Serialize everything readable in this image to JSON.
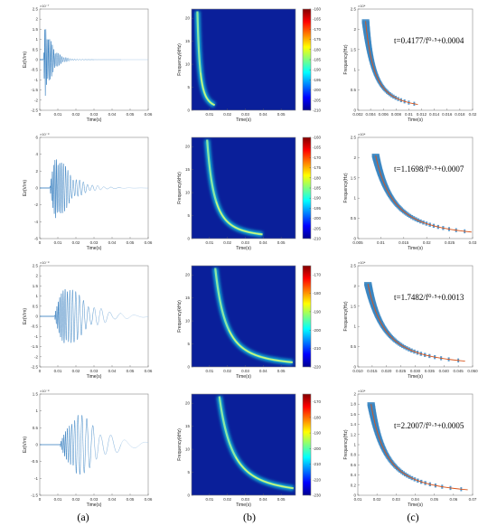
{
  "panel_labels": [
    "(a)",
    "(b)",
    "(c)"
  ],
  "colors": {
    "waveform": "#1f6fb8",
    "waveform_light": "#9cc3e6",
    "spectrogram_background": "#0a1f9a",
    "dispersion_points": "#3a86c2",
    "fit_line": "#d9541a"
  },
  "chart_data": [
    {
      "type": "line",
      "id": "a1",
      "panel": "(a)",
      "xlabel": "Time(s)",
      "ylabel": "Ez(V/m)",
      "y_exponent": "×10⁻⁷",
      "xlim": [
        0,
        0.06
      ],
      "ylim": [
        -2.5,
        2.5
      ],
      "xticks": [
        "0",
        "0.01",
        "0.02",
        "0.03",
        "0.04",
        "0.05",
        "0.06"
      ],
      "yticks": [
        "-2.5",
        "-2",
        "-1.5",
        "-1",
        "-0.5",
        "0",
        "0.5",
        "1",
        "1.5",
        "2",
        "2.5"
      ],
      "signal": {
        "onset": 0.002,
        "peak_time": 0.003,
        "amplitude": 2.05,
        "decay": 0.004,
        "period_start": 0.0006,
        "period_end": 0.0016
      }
    },
    {
      "type": "line",
      "id": "a2",
      "panel": "(a)",
      "xlabel": "Time(s)",
      "ylabel": "Ez(V/m)",
      "y_exponent": "×10⁻⁸",
      "xlim": [
        0,
        0.06
      ],
      "ylim": [
        -6,
        6
      ],
      "xticks": [
        "0",
        "0.01",
        "0.02",
        "0.03",
        "0.04",
        "0.05",
        "0.06"
      ],
      "yticks": [
        "-6",
        "-4",
        "-2",
        "0",
        "2",
        "4",
        "6"
      ],
      "signal": {
        "onset": 0.0055,
        "peak_time": 0.009,
        "amplitude": 5.0,
        "decay": 0.008,
        "period_start": 0.0006,
        "period_end": 0.0022
      }
    },
    {
      "type": "line",
      "id": "a3",
      "panel": "(a)",
      "xlabel": "Time(s)",
      "ylabel": "Ez(V/m)",
      "y_exponent": "×10⁻⁸",
      "xlim": [
        0,
        0.06
      ],
      "ylim": [
        -2.5,
        2.5
      ],
      "xticks": [
        "0",
        "0.01",
        "0.02",
        "0.03",
        "0.04",
        "0.05",
        "0.06"
      ],
      "yticks": [
        "-2.5",
        "-2",
        "-1.5",
        "-1",
        "-0.5",
        "0",
        "0.5",
        "1",
        "1.5",
        "2",
        "2.5"
      ],
      "signal": {
        "onset": 0.008,
        "peak_time": 0.014,
        "amplitude": 2.05,
        "decay": 0.012,
        "period_start": 0.0006,
        "period_end": 0.0026
      }
    },
    {
      "type": "line",
      "id": "a4",
      "panel": "(a)",
      "xlabel": "Time(s)",
      "ylabel": "Ez(V/m)",
      "y_exponent": "×10⁻⁸",
      "xlim": [
        0,
        0.06
      ],
      "ylim": [
        -1.5,
        1.5
      ],
      "xticks": [
        "0",
        "0.01",
        "0.02",
        "0.03",
        "0.04",
        "0.05",
        "0.06"
      ],
      "yticks": [
        "-1.5",
        "-1",
        "-0.5",
        "0",
        "0.5",
        "1",
        "1.5"
      ],
      "signal": {
        "onset": 0.011,
        "peak_time": 0.02,
        "amplitude": 1.2,
        "decay": 0.014,
        "period_start": 0.0006,
        "period_end": 0.003
      }
    },
    {
      "type": "heatmap",
      "id": "b1",
      "panel": "(b)",
      "xlabel": "Time(s)",
      "ylabel": "Frequency(kHz)",
      "xlim": [
        0,
        0.058
      ],
      "ylim": [
        0,
        22
      ],
      "xticks": [
        0.01,
        0.02,
        0.03,
        0.04,
        0.05
      ],
      "xtick_labels": [
        "0.01",
        "0.02",
        "0.03",
        "0.04",
        "0.05"
      ],
      "yticks": [
        0,
        5,
        10,
        15,
        20
      ],
      "ytick_labels": [
        "0",
        "5",
        "10",
        "15",
        "20"
      ],
      "colorbar_ticks": [
        "-210",
        "-205",
        "-200",
        "-195",
        "-190",
        "-185",
        "-180",
        "-175",
        "-170",
        "-165",
        "-160"
      ],
      "colorbar_range": [
        -210,
        -160
      ],
      "ridge": {
        "a": 0.4177,
        "b": 0.0004,
        "t_max": 0.013
      }
    },
    {
      "type": "heatmap",
      "id": "b2",
      "panel": "(b)",
      "xlabel": "Time(s)",
      "ylabel": "Frequency(kHz)",
      "xlim": [
        0,
        0.058
      ],
      "ylim": [
        0,
        22
      ],
      "xticks": [
        0.01,
        0.02,
        0.03,
        0.04,
        0.05
      ],
      "xtick_labels": [
        "0.01",
        "0.02",
        "0.03",
        "0.04",
        "0.05"
      ],
      "yticks": [
        0,
        5,
        10,
        15,
        20
      ],
      "ytick_labels": [
        "0",
        "5",
        "10",
        "15",
        "20"
      ],
      "colorbar_ticks": [
        "-210",
        "-205",
        "-200",
        "-195",
        "-190",
        "-185",
        "-180",
        "-175",
        "-170",
        "-165",
        "-160"
      ],
      "colorbar_range": [
        -210,
        -160
      ],
      "ridge": {
        "a": 1.1698,
        "b": 0.0007,
        "t_max": 0.041
      }
    },
    {
      "type": "heatmap",
      "id": "b3",
      "panel": "(b)",
      "xlabel": "Time(s)",
      "ylabel": "Frequency(kHz)",
      "xlim": [
        0,
        0.058
      ],
      "ylim": [
        0,
        22
      ],
      "xticks": [
        0.01,
        0.02,
        0.03,
        0.04,
        0.05
      ],
      "xtick_labels": [
        "0.01",
        "0.02",
        "0.03",
        "0.04",
        "0.05"
      ],
      "yticks": [
        0,
        5,
        10,
        15,
        20
      ],
      "ytick_labels": [
        "0",
        "5",
        "10",
        "15",
        "20"
      ],
      "colorbar_ticks": [
        "-220",
        "-210",
        "-200",
        "-190",
        "-180",
        "-170"
      ],
      "colorbar_range": [
        -220,
        -165
      ],
      "ridge": {
        "a": 1.7482,
        "b": 0.0013,
        "t_max": 0.058
      }
    },
    {
      "type": "heatmap",
      "id": "b4",
      "panel": "(b)",
      "xlabel": "Time(s)",
      "ylabel": "Frequency(kHz)",
      "xlim": [
        0,
        0.058
      ],
      "ylim": [
        0,
        22
      ],
      "xticks": [
        0.01,
        0.02,
        0.03,
        0.04,
        0.05
      ],
      "xtick_labels": [
        "0.01",
        "0.02",
        "0.03",
        "0.04",
        "0.05"
      ],
      "yticks": [
        0,
        5,
        10,
        15,
        20
      ],
      "ytick_labels": [
        "0",
        "5",
        "10",
        "15",
        "20"
      ],
      "colorbar_ticks": [
        "-230",
        "-220",
        "-210",
        "-200",
        "-190",
        "-180",
        "-170"
      ],
      "colorbar_range": [
        -230,
        -165
      ],
      "ridge": {
        "a": 2.2007,
        "b": 0.0005,
        "t_max": 0.058
      }
    },
    {
      "type": "scatter",
      "id": "c1",
      "panel": "(c)",
      "xlabel": "Time(s)",
      "ylabel": "Frequency(Hz)",
      "y_exponent": "×10⁴",
      "equation": "t=0.4177/f⁰·⁵+0.0004",
      "fit": {
        "a": 0.4177,
        "b": 0.0004
      },
      "xlim": [
        0.002,
        0.02
      ],
      "ylim": [
        0,
        2.5
      ],
      "xticks": [
        0.002,
        0.004,
        0.006,
        0.008,
        0.01,
        0.012,
        0.014,
        0.016,
        0.018,
        0.02
      ],
      "xtick_labels": [
        "0.002",
        "0.004",
        "0.006",
        "0.008",
        "0.01",
        "0.012",
        "0.014",
        "0.016",
        "0.018",
        "0.02"
      ],
      "yticks": [
        0,
        0.5,
        1,
        1.5,
        2,
        2.5
      ],
      "ytick_labels": [
        "0",
        "0.5",
        "1",
        "1.5",
        "2",
        "2.5"
      ],
      "points_range": {
        "f_min": 0.16,
        "f_max": 2.2
      }
    },
    {
      "type": "scatter",
      "id": "c2",
      "panel": "(c)",
      "xlabel": "Time(s)",
      "ylabel": "Frequency(Hz)",
      "y_exponent": "×10⁴",
      "equation": "t=1.1698/f⁰·⁵+0.0007",
      "fit": {
        "a": 1.1698,
        "b": 0.0007
      },
      "xlim": [
        0.005,
        0.03
      ],
      "ylim": [
        0,
        2.5
      ],
      "xticks": [
        0.005,
        0.01,
        0.015,
        0.02,
        0.025,
        0.03
      ],
      "xtick_labels": [
        "0.005",
        "0.01",
        "0.015",
        "0.02",
        "0.025",
        "0.03"
      ],
      "yticks": [
        0,
        0.5,
        1,
        1.5,
        2,
        2.5
      ],
      "ytick_labels": [
        "0",
        "0.5",
        "1",
        "1.5",
        "2",
        "2.5"
      ],
      "points_range": {
        "f_min": 0.18,
        "f_max": 2.05
      }
    },
    {
      "type": "scatter",
      "id": "c3",
      "panel": "(c)",
      "xlabel": "Time(s)",
      "ylabel": "Frequency(Hz)",
      "y_exponent": "×10⁴",
      "equation": "t=1.7482/f⁰·⁵+0.0013",
      "fit": {
        "a": 1.7482,
        "b": 0.0013
      },
      "xlim": [
        0.01,
        0.05
      ],
      "ylim": [
        0,
        2.5
      ],
      "xticks": [
        0.01,
        0.015,
        0.02,
        0.025,
        0.03,
        0.035,
        0.04,
        0.045,
        0.05
      ],
      "xtick_labels": [
        "0.010",
        "0.015",
        "0.020",
        "0.025",
        "0.030",
        "0.035",
        "0.040",
        "0.045",
        "0.050"
      ],
      "yticks": [
        0,
        0.5,
        1,
        1.5,
        2,
        2.5
      ],
      "ytick_labels": [
        "0",
        "0.5",
        "1",
        "1.5",
        "2",
        "2.5"
      ],
      "points_range": {
        "f_min": 0.16,
        "f_max": 2.05
      }
    },
    {
      "type": "scatter",
      "id": "c4",
      "panel": "(c)",
      "xlabel": "Time(s)",
      "ylabel": "Frequency(Hz)",
      "y_exponent": "×10⁴",
      "equation": "t=2.2007/f⁰·⁵+0.0005",
      "fit": {
        "a": 2.2007,
        "b": 0.0005
      },
      "xlim": [
        0.01,
        0.07
      ],
      "ylim": [
        0,
        2
      ],
      "xticks": [
        0.01,
        0.02,
        0.03,
        0.04,
        0.05,
        0.06,
        0.07
      ],
      "xtick_labels": [
        "0.01",
        "0.02",
        "0.03",
        "0.04",
        "0.05",
        "0.06",
        "0.07"
      ],
      "yticks": [
        0,
        0.2,
        0.4,
        0.6,
        0.8,
        1,
        1.2,
        1.4,
        1.6,
        1.8,
        2
      ],
      "ytick_labels": [
        "0",
        "0.2",
        "0.4",
        "0.6",
        "0.8",
        "1",
        "1.2",
        "1.4",
        "1.6",
        "1.8",
        "2"
      ],
      "points_range": {
        "f_min": 0.12,
        "f_max": 1.8
      }
    }
  ]
}
